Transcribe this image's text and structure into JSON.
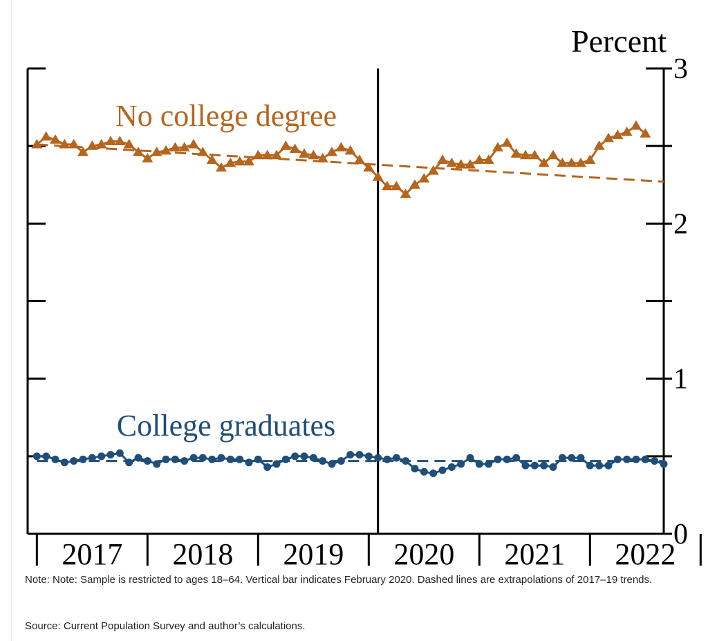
{
  "chart_data": {
    "type": "line",
    "unit_label": "Percent",
    "y_tick_labels": [
      "0",
      "1",
      "2",
      "3"
    ],
    "ylim": [
      0,
      3
    ],
    "y_tick_step": 0.5,
    "x_year_labels": [
      "2017",
      "2018",
      "2019",
      "2020",
      "2021",
      "2022"
    ],
    "x_range": [
      "2016-12",
      "2022-09"
    ],
    "event_marker": {
      "date": "2020-02"
    },
    "colors": {
      "no_college": "#b5651d",
      "college": "#1f4e79",
      "axis": "#000000"
    },
    "series": [
      {
        "name": "No college degree",
        "marker": "triangle",
        "start": "2017-01",
        "values": [
          2.51,
          2.56,
          2.54,
          2.51,
          2.51,
          2.46,
          2.5,
          2.51,
          2.53,
          2.53,
          2.51,
          2.46,
          2.42,
          2.46,
          2.47,
          2.49,
          2.49,
          2.51,
          2.46,
          2.41,
          2.36,
          2.39,
          2.4,
          2.4,
          2.44,
          2.44,
          2.44,
          2.5,
          2.48,
          2.45,
          2.44,
          2.42,
          2.46,
          2.49,
          2.47,
          2.41,
          2.36,
          2.3,
          2.24,
          2.24,
          2.19,
          2.25,
          2.29,
          2.34,
          2.41,
          2.39,
          2.38,
          2.38,
          2.41,
          2.41,
          2.49,
          2.52,
          2.45,
          2.44,
          2.44,
          2.39,
          2.44,
          2.39,
          2.39,
          2.39,
          2.41,
          2.5,
          2.55,
          2.57,
          2.59,
          2.63,
          2.58
        ]
      },
      {
        "name": "College graduates",
        "marker": "circle",
        "start": "2017-01",
        "values": [
          0.5,
          0.5,
          0.48,
          0.46,
          0.47,
          0.48,
          0.49,
          0.5,
          0.51,
          0.52,
          0.46,
          0.49,
          0.47,
          0.45,
          0.48,
          0.48,
          0.47,
          0.49,
          0.49,
          0.48,
          0.49,
          0.48,
          0.48,
          0.46,
          0.48,
          0.43,
          0.45,
          0.48,
          0.5,
          0.5,
          0.49,
          0.47,
          0.45,
          0.47,
          0.51,
          0.51,
          0.5,
          0.49,
          0.48,
          0.49,
          0.47,
          0.42,
          0.4,
          0.39,
          0.41,
          0.43,
          0.45,
          0.49,
          0.45,
          0.45,
          0.48,
          0.48,
          0.49,
          0.44,
          0.44,
          0.44,
          0.43,
          0.49,
          0.49,
          0.49,
          0.44,
          0.44,
          0.44,
          0.48,
          0.48,
          0.48,
          0.48,
          0.47,
          0.45
        ]
      }
    ],
    "trend_lines": [
      {
        "series": "No college degree",
        "style": "dashed",
        "start": "2017-01",
        "end": "2022-09",
        "values": [
          2.51,
          2.27
        ]
      },
      {
        "series": "College graduates",
        "style": "dashed",
        "start": "2017-01",
        "end": "2022-09",
        "values": [
          0.47,
          0.47
        ]
      }
    ],
    "annotations": [
      {
        "text": "No college degree",
        "series": "No college degree"
      },
      {
        "text": "College graduates",
        "series": "College graduates"
      }
    ],
    "grid": false,
    "legend": "none"
  },
  "note": "Note: Note: Sample is restricted to ages 18–64. Vertical bar indicates February 2020. Dashed lines are extrapolations of 2017–19 trends.",
  "source": "Source: Current Population Survey and author’s calculations."
}
